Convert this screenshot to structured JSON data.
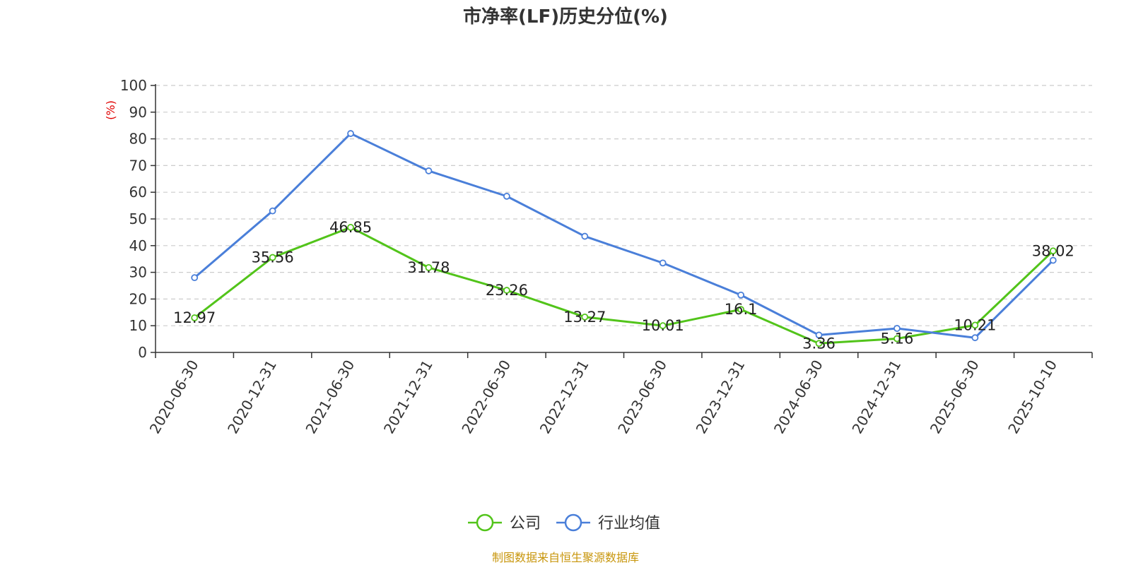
{
  "chart_data": {
    "type": "line",
    "title": "市净率(LF)历史分位(%)",
    "ylabel": "(%)",
    "xlabel": "",
    "ylim": [
      0,
      100
    ],
    "y_ticks": [
      0,
      10,
      20,
      30,
      40,
      50,
      60,
      70,
      80,
      90,
      100
    ],
    "grid": "horizontal dashed",
    "legend_position": "bottom-center",
    "categories": [
      "2020-06-30",
      "2020-12-31",
      "2021-06-30",
      "2021-12-31",
      "2022-06-30",
      "2022-12-31",
      "2023-06-30",
      "2023-12-31",
      "2024-06-30",
      "2024-12-31",
      "2025-06-30",
      "2025-10-10"
    ],
    "series": [
      {
        "name": "公司",
        "color": "#52c41a",
        "values": [
          12.97,
          35.56,
          46.85,
          31.78,
          23.26,
          13.27,
          10.01,
          16.1,
          3.36,
          5.16,
          10.21,
          38.02
        ],
        "labels": [
          "12.97",
          "35.56",
          "46.85",
          "31.78",
          "23.26",
          "13.27",
          "10.01",
          "16.1",
          "3.36",
          "5.16",
          "10.21",
          "38.02"
        ]
      },
      {
        "name": "行业均值",
        "color": "#4a7fd9",
        "values": [
          28,
          53,
          82,
          68,
          58.5,
          43.5,
          33.5,
          21.5,
          6.5,
          9,
          5.5,
          34.5
        ]
      }
    ],
    "source": "制图数据来自恒生聚源数据库",
    "source_color": "#c8960c",
    "unit_color": "#e00000"
  }
}
